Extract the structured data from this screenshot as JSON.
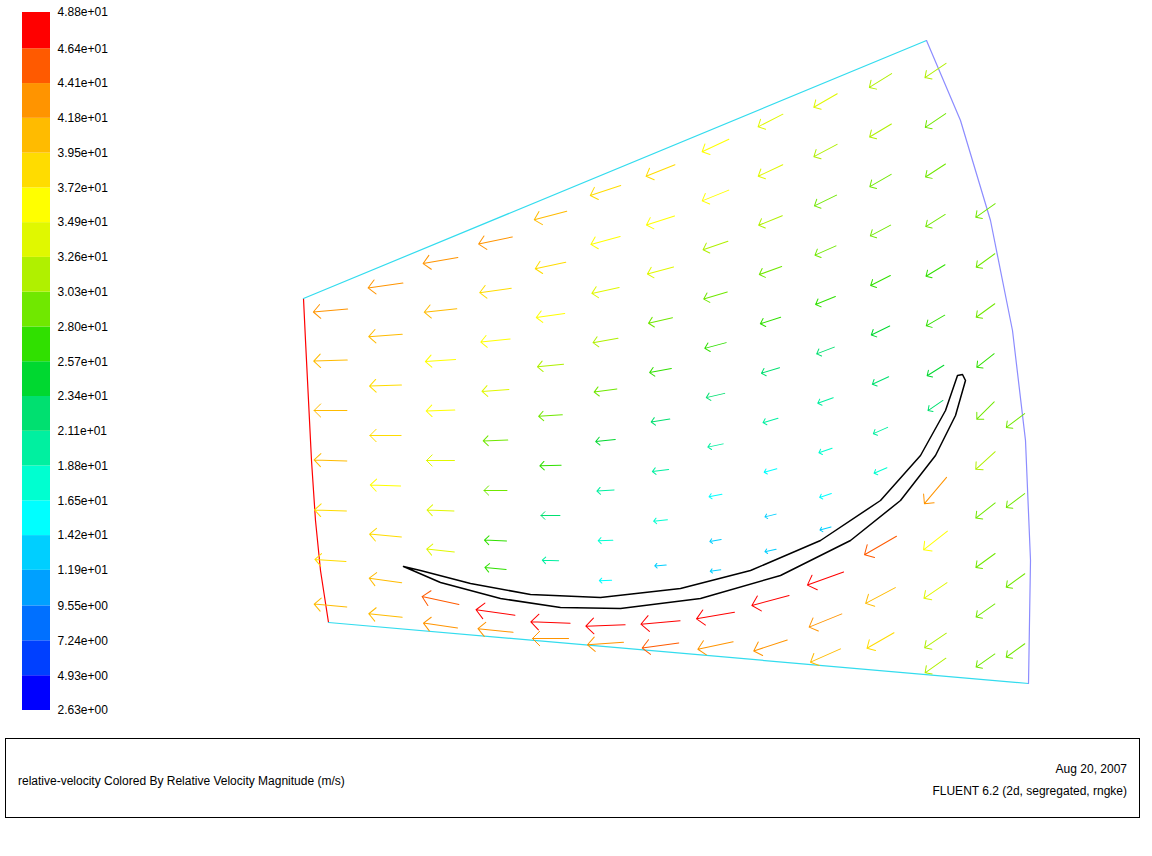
{
  "chart_data": {
    "type": "vector",
    "caption": "relative-velocity Colored By Relative Velocity Magnitude (m/s)",
    "date": "Aug 20, 2007",
    "software": "FLUENT 6.2 (2d, segregated, rngke)",
    "tick_labels": false,
    "xlim": [
      260,
      1060
    ],
    "ylim": [
      700,
      20
    ],
    "boundaries": [
      {
        "color": "#ff0000",
        "x": [
          303,
          305,
          308,
          311,
          315,
          320,
          328
        ],
        "y": [
          298,
          340,
          400,
          460,
          520,
          570,
          622
        ]
      },
      {
        "color": "#33dcee",
        "x": [
          303,
          926
        ],
        "y": [
          298,
          40
        ]
      },
      {
        "color": "#33dcee",
        "x": [
          328,
          1028
        ],
        "y": [
          622,
          683
        ]
      },
      {
        "color": "#8c8cff",
        "x": [
          926,
          960,
          990,
          1012,
          1025,
          1030,
          1028
        ],
        "y": [
          40,
          120,
          220,
          330,
          440,
          560,
          683
        ]
      }
    ],
    "blade": {
      "color": "#000000",
      "x": [
        403,
        440,
        500,
        560,
        620,
        700,
        780,
        850,
        900,
        935,
        955,
        965,
        962,
        957,
        945,
        920,
        880,
        820,
        750,
        680,
        600,
        530,
        470,
        420
      ],
      "y": [
        566,
        582,
        598,
        607,
        608,
        598,
        575,
        540,
        500,
        455,
        415,
        380,
        374,
        375,
        410,
        455,
        500,
        540,
        570,
        588,
        597,
        594,
        583,
        570
      ]
    },
    "vectors": [
      {
        "x": 330,
        "y": 310,
        "angle": 265,
        "value": 42
      },
      {
        "x": 330,
        "y": 360,
        "angle": 268,
        "value": 41
      },
      {
        "x": 330,
        "y": 410,
        "angle": 270,
        "value": 40
      },
      {
        "x": 330,
        "y": 460,
        "angle": 272,
        "value": 40
      },
      {
        "x": 330,
        "y": 510,
        "angle": 272,
        "value": 39
      },
      {
        "x": 330,
        "y": 560,
        "angle": 274,
        "value": 38
      },
      {
        "x": 330,
        "y": 605,
        "angle": 275,
        "value": 40
      },
      {
        "x": 385,
        "y": 285,
        "angle": 262,
        "value": 43
      },
      {
        "x": 385,
        "y": 335,
        "angle": 266,
        "value": 41
      },
      {
        "x": 385,
        "y": 385,
        "angle": 268,
        "value": 39
      },
      {
        "x": 385,
        "y": 435,
        "angle": 270,
        "value": 38
      },
      {
        "x": 385,
        "y": 485,
        "angle": 272,
        "value": 37
      },
      {
        "x": 385,
        "y": 535,
        "angle": 275,
        "value": 39
      },
      {
        "x": 385,
        "y": 580,
        "angle": 278,
        "value": 40
      },
      {
        "x": 385,
        "y": 615,
        "angle": 276,
        "value": 41
      },
      {
        "x": 440,
        "y": 260,
        "angle": 260,
        "value": 43
      },
      {
        "x": 440,
        "y": 310,
        "angle": 264,
        "value": 40
      },
      {
        "x": 440,
        "y": 360,
        "angle": 266,
        "value": 37
      },
      {
        "x": 440,
        "y": 410,
        "angle": 268,
        "value": 35
      },
      {
        "x": 440,
        "y": 460,
        "angle": 270,
        "value": 34
      },
      {
        "x": 440,
        "y": 510,
        "angle": 272,
        "value": 33
      },
      {
        "x": 440,
        "y": 550,
        "angle": 276,
        "value": 34
      },
      {
        "x": 440,
        "y": 600,
        "angle": 282,
        "value": 46
      },
      {
        "x": 440,
        "y": 625,
        "angle": 278,
        "value": 42
      },
      {
        "x": 495,
        "y": 240,
        "angle": 258,
        "value": 42
      },
      {
        "x": 495,
        "y": 290,
        "angle": 262,
        "value": 39
      },
      {
        "x": 495,
        "y": 340,
        "angle": 264,
        "value": 36
      },
      {
        "x": 495,
        "y": 390,
        "angle": 266,
        "value": 33
      },
      {
        "x": 495,
        "y": 440,
        "angle": 268,
        "value": 30
      },
      {
        "x": 495,
        "y": 490,
        "angle": 270,
        "value": 28
      },
      {
        "x": 495,
        "y": 540,
        "angle": 272,
        "value": 27
      },
      {
        "x": 495,
        "y": 568,
        "angle": 276,
        "value": 26
      },
      {
        "x": 495,
        "y": 612,
        "angle": 278,
        "value": 48
      },
      {
        "x": 495,
        "y": 630,
        "angle": 276,
        "value": 43
      },
      {
        "x": 550,
        "y": 215,
        "angle": 255,
        "value": 41
      },
      {
        "x": 550,
        "y": 265,
        "angle": 258,
        "value": 38
      },
      {
        "x": 550,
        "y": 315,
        "angle": 262,
        "value": 35
      },
      {
        "x": 550,
        "y": 365,
        "angle": 264,
        "value": 32
      },
      {
        "x": 550,
        "y": 415,
        "angle": 266,
        "value": 29
      },
      {
        "x": 550,
        "y": 465,
        "angle": 268,
        "value": 26
      },
      {
        "x": 550,
        "y": 515,
        "angle": 270,
        "value": 23
      },
      {
        "x": 550,
        "y": 560,
        "angle": 272,
        "value": 20
      },
      {
        "x": 550,
        "y": 622,
        "angle": 272,
        "value": 48
      },
      {
        "x": 550,
        "y": 638,
        "angle": 270,
        "value": 44
      },
      {
        "x": 605,
        "y": 190,
        "angle": 252,
        "value": 39
      },
      {
        "x": 605,
        "y": 240,
        "angle": 255,
        "value": 37
      },
      {
        "x": 605,
        "y": 290,
        "angle": 258,
        "value": 34
      },
      {
        "x": 605,
        "y": 340,
        "angle": 260,
        "value": 31
      },
      {
        "x": 605,
        "y": 390,
        "angle": 262,
        "value": 28
      },
      {
        "x": 605,
        "y": 440,
        "angle": 264,
        "value": 24
      },
      {
        "x": 605,
        "y": 490,
        "angle": 266,
        "value": 21
      },
      {
        "x": 605,
        "y": 540,
        "angle": 268,
        "value": 18
      },
      {
        "x": 605,
        "y": 580,
        "angle": 268,
        "value": 15
      },
      {
        "x": 605,
        "y": 625,
        "angle": 268,
        "value": 48
      },
      {
        "x": 605,
        "y": 643,
        "angle": 266,
        "value": 44
      },
      {
        "x": 660,
        "y": 170,
        "angle": 248,
        "value": 38
      },
      {
        "x": 660,
        "y": 220,
        "angle": 252,
        "value": 36
      },
      {
        "x": 660,
        "y": 270,
        "angle": 255,
        "value": 33
      },
      {
        "x": 660,
        "y": 320,
        "angle": 257,
        "value": 30
      },
      {
        "x": 660,
        "y": 370,
        "angle": 259,
        "value": 27
      },
      {
        "x": 660,
        "y": 420,
        "angle": 261,
        "value": 23
      },
      {
        "x": 660,
        "y": 470,
        "angle": 263,
        "value": 20
      },
      {
        "x": 660,
        "y": 520,
        "angle": 264,
        "value": 17
      },
      {
        "x": 660,
        "y": 565,
        "angle": 266,
        "value": 14
      },
      {
        "x": 660,
        "y": 622,
        "angle": 265,
        "value": 48
      },
      {
        "x": 660,
        "y": 645,
        "angle": 262,
        "value": 45
      },
      {
        "x": 715,
        "y": 145,
        "angle": 245,
        "value": 36
      },
      {
        "x": 715,
        "y": 195,
        "angle": 248,
        "value": 35
      },
      {
        "x": 715,
        "y": 245,
        "angle": 251,
        "value": 32
      },
      {
        "x": 715,
        "y": 295,
        "angle": 253,
        "value": 30
      },
      {
        "x": 715,
        "y": 345,
        "angle": 255,
        "value": 27
      },
      {
        "x": 715,
        "y": 395,
        "angle": 257,
        "value": 23
      },
      {
        "x": 715,
        "y": 445,
        "angle": 258,
        "value": 19
      },
      {
        "x": 715,
        "y": 495,
        "angle": 259,
        "value": 16
      },
      {
        "x": 715,
        "y": 540,
        "angle": 260,
        "value": 14
      },
      {
        "x": 715,
        "y": 570,
        "angle": 262,
        "value": 13
      },
      {
        "x": 715,
        "y": 615,
        "angle": 260,
        "value": 47
      },
      {
        "x": 715,
        "y": 645,
        "angle": 258,
        "value": 44
      },
      {
        "x": 770,
        "y": 120,
        "angle": 243,
        "value": 34
      },
      {
        "x": 770,
        "y": 170,
        "angle": 245,
        "value": 33
      },
      {
        "x": 770,
        "y": 220,
        "angle": 248,
        "value": 31
      },
      {
        "x": 770,
        "y": 270,
        "angle": 250,
        "value": 29
      },
      {
        "x": 770,
        "y": 320,
        "angle": 252,
        "value": 26
      },
      {
        "x": 770,
        "y": 370,
        "angle": 253,
        "value": 23
      },
      {
        "x": 770,
        "y": 420,
        "angle": 254,
        "value": 19
      },
      {
        "x": 770,
        "y": 470,
        "angle": 255,
        "value": 16
      },
      {
        "x": 770,
        "y": 515,
        "angle": 256,
        "value": 14
      },
      {
        "x": 770,
        "y": 550,
        "angle": 258,
        "value": 14
      },
      {
        "x": 770,
        "y": 600,
        "angle": 255,
        "value": 47
      },
      {
        "x": 770,
        "y": 645,
        "angle": 252,
        "value": 43
      },
      {
        "x": 825,
        "y": 100,
        "angle": 240,
        "value": 33
      },
      {
        "x": 825,
        "y": 150,
        "angle": 242,
        "value": 32
      },
      {
        "x": 825,
        "y": 200,
        "angle": 244,
        "value": 30
      },
      {
        "x": 825,
        "y": 250,
        "angle": 246,
        "value": 28
      },
      {
        "x": 825,
        "y": 300,
        "angle": 248,
        "value": 26
      },
      {
        "x": 825,
        "y": 350,
        "angle": 249,
        "value": 23
      },
      {
        "x": 825,
        "y": 400,
        "angle": 250,
        "value": 20
      },
      {
        "x": 825,
        "y": 450,
        "angle": 251,
        "value": 17
      },
      {
        "x": 825,
        "y": 495,
        "angle": 252,
        "value": 15
      },
      {
        "x": 825,
        "y": 528,
        "angle": 254,
        "value": 14
      },
      {
        "x": 825,
        "y": 578,
        "angle": 250,
        "value": 47
      },
      {
        "x": 825,
        "y": 620,
        "angle": 248,
        "value": 43
      },
      {
        "x": 825,
        "y": 655,
        "angle": 246,
        "value": 40
      },
      {
        "x": 880,
        "y": 80,
        "angle": 238,
        "value": 32
      },
      {
        "x": 880,
        "y": 130,
        "angle": 239,
        "value": 31
      },
      {
        "x": 880,
        "y": 180,
        "angle": 240,
        "value": 30
      },
      {
        "x": 880,
        "y": 230,
        "angle": 242,
        "value": 28
      },
      {
        "x": 880,
        "y": 280,
        "angle": 243,
        "value": 27
      },
      {
        "x": 880,
        "y": 330,
        "angle": 244,
        "value": 25
      },
      {
        "x": 880,
        "y": 380,
        "angle": 245,
        "value": 22
      },
      {
        "x": 880,
        "y": 430,
        "angle": 246,
        "value": 19
      },
      {
        "x": 880,
        "y": 470,
        "angle": 247,
        "value": 17
      },
      {
        "x": 880,
        "y": 545,
        "angle": 240,
        "value": 45
      },
      {
        "x": 880,
        "y": 595,
        "angle": 242,
        "value": 41
      },
      {
        "x": 880,
        "y": 640,
        "angle": 240,
        "value": 38
      },
      {
        "x": 935,
        "y": 70,
        "angle": 236,
        "value": 31
      },
      {
        "x": 935,
        "y": 120,
        "angle": 236,
        "value": 30
      },
      {
        "x": 935,
        "y": 170,
        "angle": 237,
        "value": 29
      },
      {
        "x": 935,
        "y": 220,
        "angle": 238,
        "value": 28
      },
      {
        "x": 935,
        "y": 270,
        "angle": 239,
        "value": 27
      },
      {
        "x": 935,
        "y": 320,
        "angle": 240,
        "value": 26
      },
      {
        "x": 935,
        "y": 370,
        "angle": 238,
        "value": 24
      },
      {
        "x": 935,
        "y": 405,
        "angle": 236,
        "value": 22
      },
      {
        "x": 935,
        "y": 490,
        "angle": 220,
        "value": 42
      },
      {
        "x": 935,
        "y": 540,
        "angle": 232,
        "value": 37
      },
      {
        "x": 935,
        "y": 590,
        "angle": 236,
        "value": 34
      },
      {
        "x": 935,
        "y": 640,
        "angle": 236,
        "value": 32
      },
      {
        "x": 935,
        "y": 665,
        "angle": 235,
        "value": 31
      },
      {
        "x": 985,
        "y": 210,
        "angle": 235,
        "value": 29
      },
      {
        "x": 985,
        "y": 260,
        "angle": 234,
        "value": 28
      },
      {
        "x": 985,
        "y": 310,
        "angle": 234,
        "value": 28
      },
      {
        "x": 985,
        "y": 360,
        "angle": 232,
        "value": 27
      },
      {
        "x": 985,
        "y": 410,
        "angle": 225,
        "value": 30
      },
      {
        "x": 985,
        "y": 460,
        "angle": 228,
        "value": 32
      },
      {
        "x": 985,
        "y": 510,
        "angle": 232,
        "value": 30
      },
      {
        "x": 985,
        "y": 560,
        "angle": 234,
        "value": 29
      },
      {
        "x": 985,
        "y": 610,
        "angle": 235,
        "value": 28
      },
      {
        "x": 985,
        "y": 660,
        "angle": 235,
        "value": 28
      },
      {
        "x": 1015,
        "y": 420,
        "angle": 233,
        "value": 28
      },
      {
        "x": 1015,
        "y": 500,
        "angle": 233,
        "value": 28
      },
      {
        "x": 1015,
        "y": 580,
        "angle": 234,
        "value": 28
      },
      {
        "x": 1015,
        "y": 650,
        "angle": 234,
        "value": 28
      }
    ],
    "colorbar": {
      "lim": [
        2.63,
        48.8
      ],
      "ticks": [
        {
          "value": 2.63,
          "label": "2.63e+00"
        },
        {
          "value": 4.93,
          "label": "4.93e+00"
        },
        {
          "value": 7.24,
          "label": "7.24e+00"
        },
        {
          "value": 9.55,
          "label": "9.55e+00"
        },
        {
          "value": 11.9,
          "label": "1.19e+01"
        },
        {
          "value": 14.2,
          "label": "1.42e+01"
        },
        {
          "value": 16.5,
          "label": "1.65e+01"
        },
        {
          "value": 18.8,
          "label": "1.88e+01"
        },
        {
          "value": 21.1,
          "label": "2.11e+01"
        },
        {
          "value": 23.4,
          "label": "2.34e+01"
        },
        {
          "value": 25.7,
          "label": "2.57e+01"
        },
        {
          "value": 28.0,
          "label": "2.80e+01"
        },
        {
          "value": 30.3,
          "label": "3.03e+01"
        },
        {
          "value": 32.6,
          "label": "3.26e+01"
        },
        {
          "value": 34.9,
          "label": "3.49e+01"
        },
        {
          "value": 37.2,
          "label": "3.72e+01"
        },
        {
          "value": 39.5,
          "label": "3.95e+01"
        },
        {
          "value": 41.8,
          "label": "4.18e+01"
        },
        {
          "value": 44.1,
          "label": "4.41e+01"
        },
        {
          "value": 46.4,
          "label": "4.64e+01"
        },
        {
          "value": 48.8,
          "label": "4.88e+01"
        }
      ],
      "colors": [
        "#0000ff",
        "#0040ff",
        "#0070ff",
        "#00a0ff",
        "#00cfff",
        "#00ffff",
        "#00ffd0",
        "#00f0a0",
        "#00e070",
        "#00d830",
        "#30e000",
        "#70e800",
        "#b0f000",
        "#e0f800",
        "#ffff00",
        "#ffdc00",
        "#ffbb00",
        "#ff9400",
        "#ff5a00",
        "#ff0000"
      ]
    }
  }
}
